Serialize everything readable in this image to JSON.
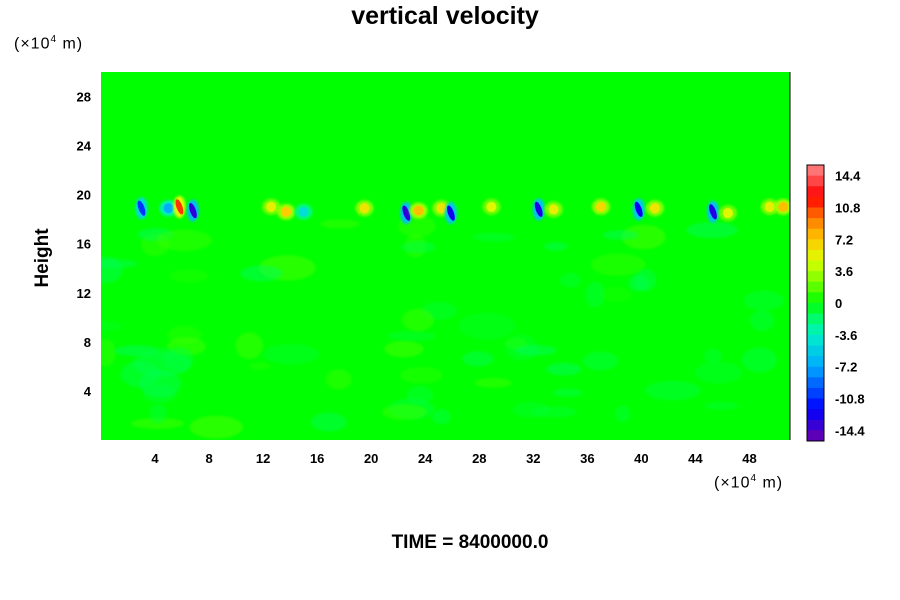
{
  "chart_data": {
    "type": "heatmap",
    "title": "vertical velocity",
    "ylabel": "Height",
    "y_unit_prefix": "(×10",
    "y_unit_exp": "4",
    "y_unit_suffix": " m)",
    "x_unit_prefix": "(×10",
    "x_unit_exp": "4",
    "x_unit_suffix": " m)",
    "xlim": [
      0,
      51
    ],
    "ylim": [
      0,
      30
    ],
    "x_ticks": [
      "4",
      "8",
      "12",
      "16",
      "20",
      "24",
      "28",
      "32",
      "36",
      "40",
      "44",
      "48"
    ],
    "y_ticks": [
      "4",
      "8",
      "12",
      "16",
      "20",
      "24",
      "28"
    ],
    "colorbar": {
      "min": -15.6,
      "max": 15.6,
      "step": 1.2,
      "tick_labels": [
        "14.4",
        "10.8",
        "7.2",
        "3.6",
        "0",
        "-3.6",
        "-7.2",
        "-10.8",
        "-14.4"
      ]
    },
    "background_value": 0,
    "features": [
      {
        "x": 3.0,
        "y": 18.9,
        "value": -10.5
      },
      {
        "x": 5.0,
        "y": 18.9,
        "value": -7.0
      },
      {
        "x": 5.8,
        "y": 19.0,
        "value": 11.0
      },
      {
        "x": 6.8,
        "y": 18.7,
        "value": -13.5
      },
      {
        "x": 12.6,
        "y": 19.0,
        "value": 5.5
      },
      {
        "x": 13.7,
        "y": 18.6,
        "value": 7.0
      },
      {
        "x": 15.0,
        "y": 18.6,
        "value": -4.5
      },
      {
        "x": 19.5,
        "y": 18.9,
        "value": 6.0
      },
      {
        "x": 22.6,
        "y": 18.5,
        "value": -13.5
      },
      {
        "x": 23.5,
        "y": 18.7,
        "value": 7.5
      },
      {
        "x": 25.2,
        "y": 18.9,
        "value": 6.0
      },
      {
        "x": 25.9,
        "y": 18.5,
        "value": -12.5
      },
      {
        "x": 28.9,
        "y": 19.0,
        "value": 5.0
      },
      {
        "x": 32.4,
        "y": 18.8,
        "value": -13.0
      },
      {
        "x": 33.5,
        "y": 18.8,
        "value": 5.5
      },
      {
        "x": 37.0,
        "y": 19.0,
        "value": 6.5
      },
      {
        "x": 39.8,
        "y": 18.8,
        "value": -12.5
      },
      {
        "x": 41.0,
        "y": 18.9,
        "value": 6.0
      },
      {
        "x": 45.3,
        "y": 18.6,
        "value": -13.0
      },
      {
        "x": 46.4,
        "y": 18.5,
        "value": 5.0
      },
      {
        "x": 49.5,
        "y": 19.0,
        "value": 5.5
      },
      {
        "x": 50.5,
        "y": 19.0,
        "value": 7.5
      }
    ]
  },
  "footer": {
    "time_label": "TIME = 8400000.0"
  }
}
